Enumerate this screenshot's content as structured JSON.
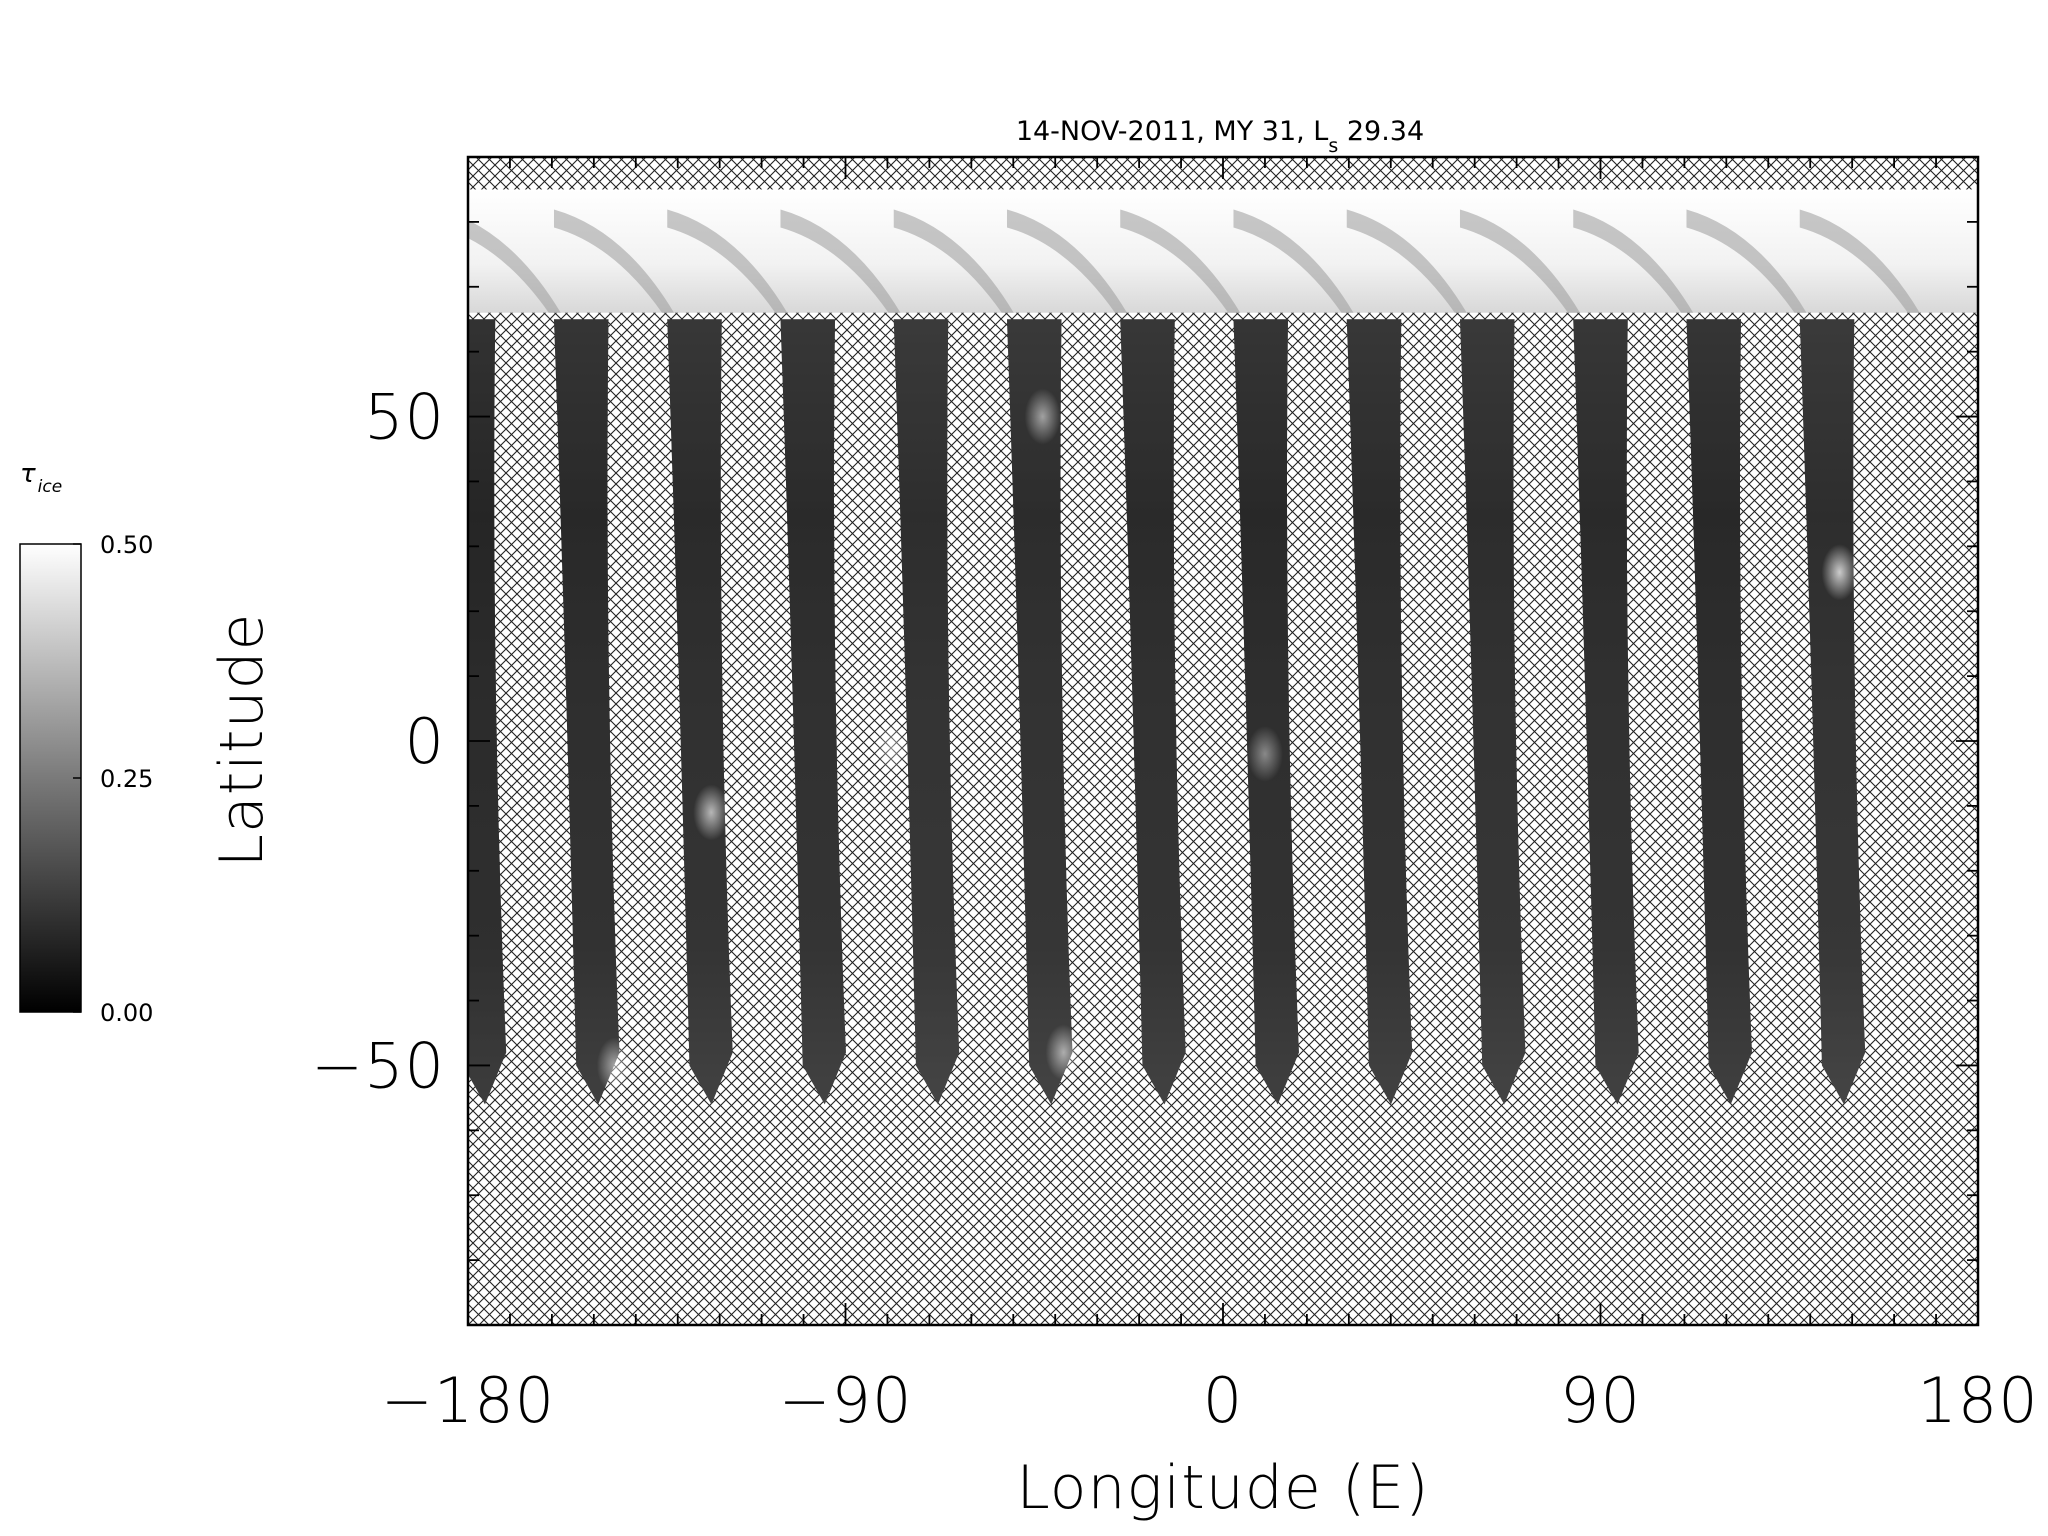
{
  "chart_data": {
    "type": "heatmap",
    "title": "14-NOV-2011, MY 31,  L",
    "title_subscript": "s",
    "title_value": "29.34",
    "xlabel": "Longitude (E)",
    "ylabel": "Latitude",
    "xlim": [
      -180,
      180
    ],
    "ylim": [
      -90,
      90
    ],
    "xticks": [
      -180,
      -90,
      0,
      90,
      180
    ],
    "xtick_labels": [
      "−180",
      "−90",
      "0",
      "90",
      "180"
    ],
    "yticks": [
      -50,
      0,
      50
    ],
    "ytick_labels": [
      "−50",
      "0",
      "50"
    ],
    "x_minor_step": 10,
    "y_minor_step": 10,
    "no_data_pattern": "cross-hatch",
    "polar_cap_lat_range": [
      66,
      85
    ],
    "swaths": [
      {
        "lon_south": -177,
        "lon_north": -180,
        "lat_south": -56,
        "lat_north": 65,
        "mean_value": 0.07
      },
      {
        "lon_south": -150,
        "lon_north": -153,
        "lat_south": -56,
        "lat_north": 65,
        "mean_value": 0.09
      },
      {
        "lon_south": -123,
        "lon_north": -126,
        "lat_south": -56,
        "lat_north": 65,
        "mean_value": 0.1
      },
      {
        "lon_south": -96,
        "lon_north": -99,
        "lat_south": -56,
        "lat_north": 65,
        "mean_value": 0.1
      },
      {
        "lon_south": -69,
        "lon_north": -72,
        "lat_south": -56,
        "lat_north": 65,
        "mean_value": 0.12
      },
      {
        "lon_south": -42,
        "lon_north": -45,
        "lat_south": -56,
        "lat_north": 65,
        "mean_value": 0.11
      },
      {
        "lon_south": -15,
        "lon_north": -18,
        "lat_south": -56,
        "lat_north": 65,
        "mean_value": 0.1
      },
      {
        "lon_south": 12,
        "lon_north": 9,
        "lat_south": -56,
        "lat_north": 65,
        "mean_value": 0.09
      },
      {
        "lon_south": 39,
        "lon_north": 36,
        "lat_south": -56,
        "lat_north": 65,
        "mean_value": 0.1
      },
      {
        "lon_south": 66,
        "lon_north": 63,
        "lat_south": -56,
        "lat_north": 65,
        "mean_value": 0.11
      },
      {
        "lon_south": 93,
        "lon_north": 90,
        "lat_south": -56,
        "lat_north": 65,
        "mean_value": 0.1
      },
      {
        "lon_south": 120,
        "lon_north": 117,
        "lat_south": -56,
        "lat_north": 65,
        "mean_value": 0.09
      },
      {
        "lon_south": 147,
        "lon_north": 144,
        "lat_south": -56,
        "lat_north": 65,
        "mean_value": 0.12
      }
    ],
    "bright_features": [
      {
        "lon": 147,
        "lat": 26,
        "value": 0.42
      },
      {
        "lon": -122,
        "lat": -11,
        "value": 0.36
      },
      {
        "lon": -43,
        "lat": 50,
        "value": 0.3
      },
      {
        "lon": -38,
        "lat": -48,
        "value": 0.32
      },
      {
        "lon": -145,
        "lat": -50,
        "value": 0.3
      },
      {
        "lon": -79,
        "lat": -1,
        "value": 0.26
      },
      {
        "lon": 10,
        "lat": -2,
        "value": 0.24
      }
    ]
  },
  "colorbar": {
    "title": "τ",
    "title_subscript": "ice",
    "min": 0.0,
    "max": 0.5,
    "labels": [
      "0.50",
      "0.25",
      "0.00"
    ],
    "label_values": [
      0.5,
      0.25,
      0.0
    ],
    "color_low": "#000000",
    "color_high": "#ffffff"
  }
}
